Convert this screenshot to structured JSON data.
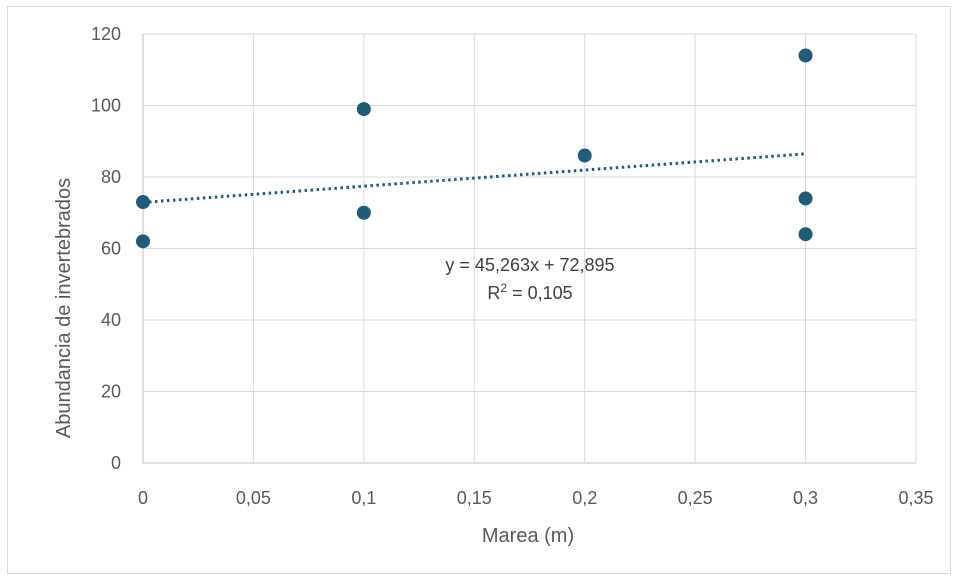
{
  "chart_data": {
    "type": "scatter",
    "xlabel": "Marea (m)",
    "ylabel": "Abundancia de invertebrados",
    "xlim": [
      0,
      0.35
    ],
    "ylim": [
      0,
      120
    ],
    "x_ticks": [
      "0",
      "0,05",
      "0,1",
      "0,15",
      "0,2",
      "0,25",
      "0,3",
      "0,35"
    ],
    "x_tick_values": [
      0,
      0.05,
      0.1,
      0.15,
      0.2,
      0.25,
      0.3,
      0.35
    ],
    "y_ticks": [
      "0",
      "20",
      "40",
      "60",
      "80",
      "100",
      "120"
    ],
    "y_tick_values": [
      0,
      20,
      40,
      60,
      80,
      100,
      120
    ],
    "grid": true,
    "series": [
      {
        "points": [
          {
            "x": 0,
            "y": 73
          },
          {
            "x": 0,
            "y": 62
          },
          {
            "x": 0.1,
            "y": 99
          },
          {
            "x": 0.1,
            "y": 70
          },
          {
            "x": 0.2,
            "y": 86
          },
          {
            "x": 0.3,
            "y": 114
          },
          {
            "x": 0.3,
            "y": 74
          },
          {
            "x": 0.3,
            "y": 64
          }
        ],
        "color": "#1f5c7a"
      }
    ],
    "trendline": {
      "type": "linear",
      "slope": 45.263,
      "intercept": 72.895,
      "x_range": [
        0,
        0.3
      ],
      "style": "dotted",
      "color": "#1f5c7a",
      "equation_label": "y = 45,263x + 72,895",
      "r2_prefix": "R",
      "r2_sup": "2",
      "r2_suffix": " = 0,105"
    }
  }
}
